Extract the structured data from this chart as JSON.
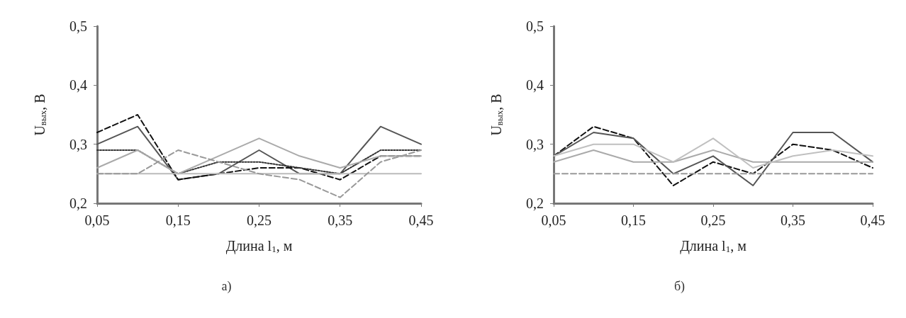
{
  "chart_data": [
    {
      "type": "line",
      "xlabel": "Длина l$_{1}$, м",
      "ylabel": "U$_{вых}$, В",
      "annotations": [
        "а)"
      ],
      "x": [
        0.05,
        0.1,
        0.15,
        0.2,
        0.25,
        0.3,
        0.35,
        0.4,
        0.45
      ],
      "xlim": [
        0.05,
        0.45
      ],
      "xticks": [
        {
          "value": 0.05,
          "label": "0,05"
        },
        {
          "value": 0.15,
          "label": "0,15"
        },
        {
          "value": 0.25,
          "label": "0,25"
        },
        {
          "value": 0.35,
          "label": "0,35"
        },
        {
          "value": 0.45,
          "label": "0,45"
        }
      ],
      "ylim": [
        0.2,
        0.5
      ],
      "yticks": [
        {
          "value": 0.2,
          "label": "0,2"
        },
        {
          "value": 0.3,
          "label": "0,3"
        },
        {
          "value": 0.4,
          "label": "0,4"
        },
        {
          "value": 0.5,
          "label": "0,5"
        }
      ],
      "grid": false,
      "marker": "none",
      "series": [
        {
          "color": "#555555",
          "line_style": "solid",
          "values": [
            0.3,
            0.33,
            0.24,
            0.25,
            0.29,
            0.25,
            0.25,
            0.33,
            0.3
          ]
        },
        {
          "color": "#111111",
          "line_style": "dashed",
          "values": [
            0.32,
            0.35,
            0.24,
            0.25,
            0.26,
            0.26,
            0.24,
            0.28,
            0.28
          ]
        },
        {
          "color": "#333333",
          "line_style": "dotted",
          "values": [
            0.29,
            0.29,
            0.25,
            0.27,
            0.27,
            0.26,
            0.25,
            0.29,
            0.29
          ]
        },
        {
          "color": "#aaaaaa",
          "line_style": "solid",
          "values": [
            0.26,
            0.29,
            0.25,
            0.28,
            0.31,
            0.28,
            0.26,
            0.28,
            0.28
          ]
        },
        {
          "color": "#bbbbbb",
          "line_style": "solid",
          "values": [
            0.25,
            0.25,
            0.25,
            0.25,
            0.25,
            0.25,
            0.25,
            0.25,
            0.25
          ]
        },
        {
          "color": "#999999",
          "line_style": "dashed",
          "values": [
            0.25,
            0.25,
            0.29,
            0.27,
            0.25,
            0.24,
            0.21,
            0.27,
            0.29
          ]
        }
      ]
    },
    {
      "type": "line",
      "xlabel": "Длина l$_{1}$, м",
      "ylabel": "U$_{вых}$, В",
      "annotations": [
        "б)"
      ],
      "x": [
        0.05,
        0.1,
        0.15,
        0.2,
        0.25,
        0.3,
        0.35,
        0.4,
        0.45
      ],
      "xlim": [
        0.05,
        0.45
      ],
      "xticks": [
        {
          "value": 0.05,
          "label": "0,05"
        },
        {
          "value": 0.15,
          "label": "0,15"
        },
        {
          "value": 0.25,
          "label": "0,25"
        },
        {
          "value": 0.35,
          "label": "0,35"
        },
        {
          "value": 0.45,
          "label": "0,45"
        }
      ],
      "ylim": [
        0.2,
        0.5
      ],
      "yticks": [
        {
          "value": 0.2,
          "label": "0,2"
        },
        {
          "value": 0.3,
          "label": "0,3"
        },
        {
          "value": 0.4,
          "label": "0,4"
        },
        {
          "value": 0.5,
          "label": "0,5"
        }
      ],
      "grid": false,
      "marker": "none",
      "series": [
        {
          "color": "#111111",
          "line_style": "dashed",
          "values": [
            0.28,
            0.33,
            0.31,
            0.23,
            0.27,
            0.25,
            0.3,
            0.29,
            0.26
          ]
        },
        {
          "color": "#555555",
          "line_style": "solid",
          "values": [
            0.28,
            0.32,
            0.31,
            0.25,
            0.28,
            0.23,
            0.32,
            0.32,
            0.27
          ]
        },
        {
          "color": "#aaaaaa",
          "line_style": "solid",
          "values": [
            0.27,
            0.29,
            0.27,
            0.27,
            0.29,
            0.27,
            0.27,
            0.27,
            0.27
          ]
        },
        {
          "color": "#c0c0c0",
          "line_style": "solid",
          "values": [
            0.28,
            0.3,
            0.3,
            0.27,
            0.31,
            0.26,
            0.28,
            0.29,
            0.28
          ]
        },
        {
          "color": "#999999",
          "line_style": "dashed",
          "values": [
            0.25,
            0.25,
            0.25,
            0.25,
            0.25,
            0.25,
            0.25,
            0.25,
            0.25
          ]
        }
      ]
    }
  ]
}
